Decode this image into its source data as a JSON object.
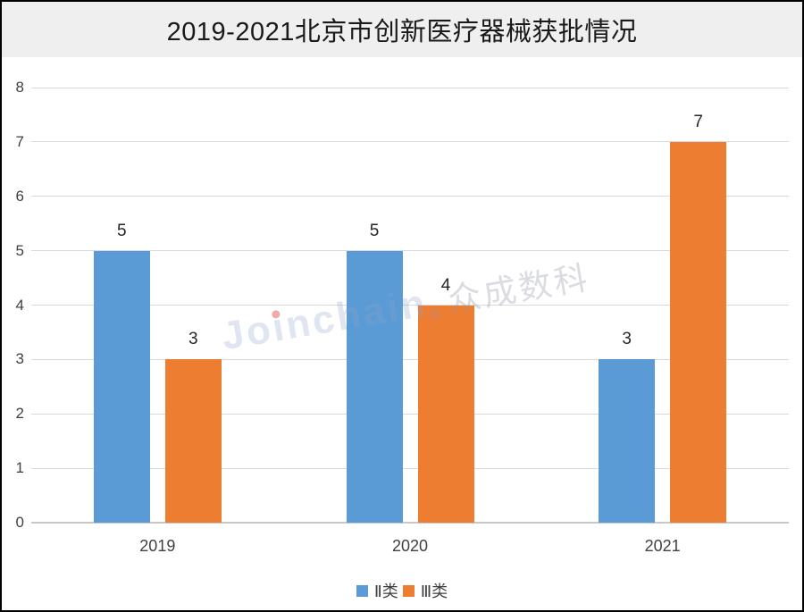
{
  "header": {
    "title": "2019-2021北京市创新医疗器械获批情况"
  },
  "chart_data": {
    "type": "bar",
    "title": "2019-2021北京市创新医疗器械获批情况",
    "categories": [
      "2019",
      "2020",
      "2021"
    ],
    "series": [
      {
        "name": "Ⅱ类",
        "color": "#5B9BD5",
        "values": [
          5,
          5,
          3
        ]
      },
      {
        "name": "Ⅲ类",
        "color": "#ED7D31",
        "values": [
          3,
          4,
          7
        ]
      }
    ],
    "xlabel": "",
    "ylabel": "",
    "ylim": [
      0,
      8
    ],
    "yticks": [
      0,
      1,
      2,
      3,
      4,
      5,
      6,
      7,
      8
    ],
    "grid": true,
    "value_labels": true,
    "legend_position": "bottom"
  },
  "watermark": {
    "pre": "Jo",
    "i_dotless": "ı",
    "post": "nchain",
    "reg": "®",
    "cn": "众成数科"
  },
  "colors": {
    "series_blue": "#5B9BD5",
    "series_orange": "#ED7D31",
    "gridline": "#D9D9D9",
    "axis_line": "#C8C8C8",
    "axis_text": "#404040",
    "value_text": "#262626",
    "title_text": "#1A1A1A",
    "header_bg": "#EFEFEF",
    "frame_border": "#000000"
  }
}
